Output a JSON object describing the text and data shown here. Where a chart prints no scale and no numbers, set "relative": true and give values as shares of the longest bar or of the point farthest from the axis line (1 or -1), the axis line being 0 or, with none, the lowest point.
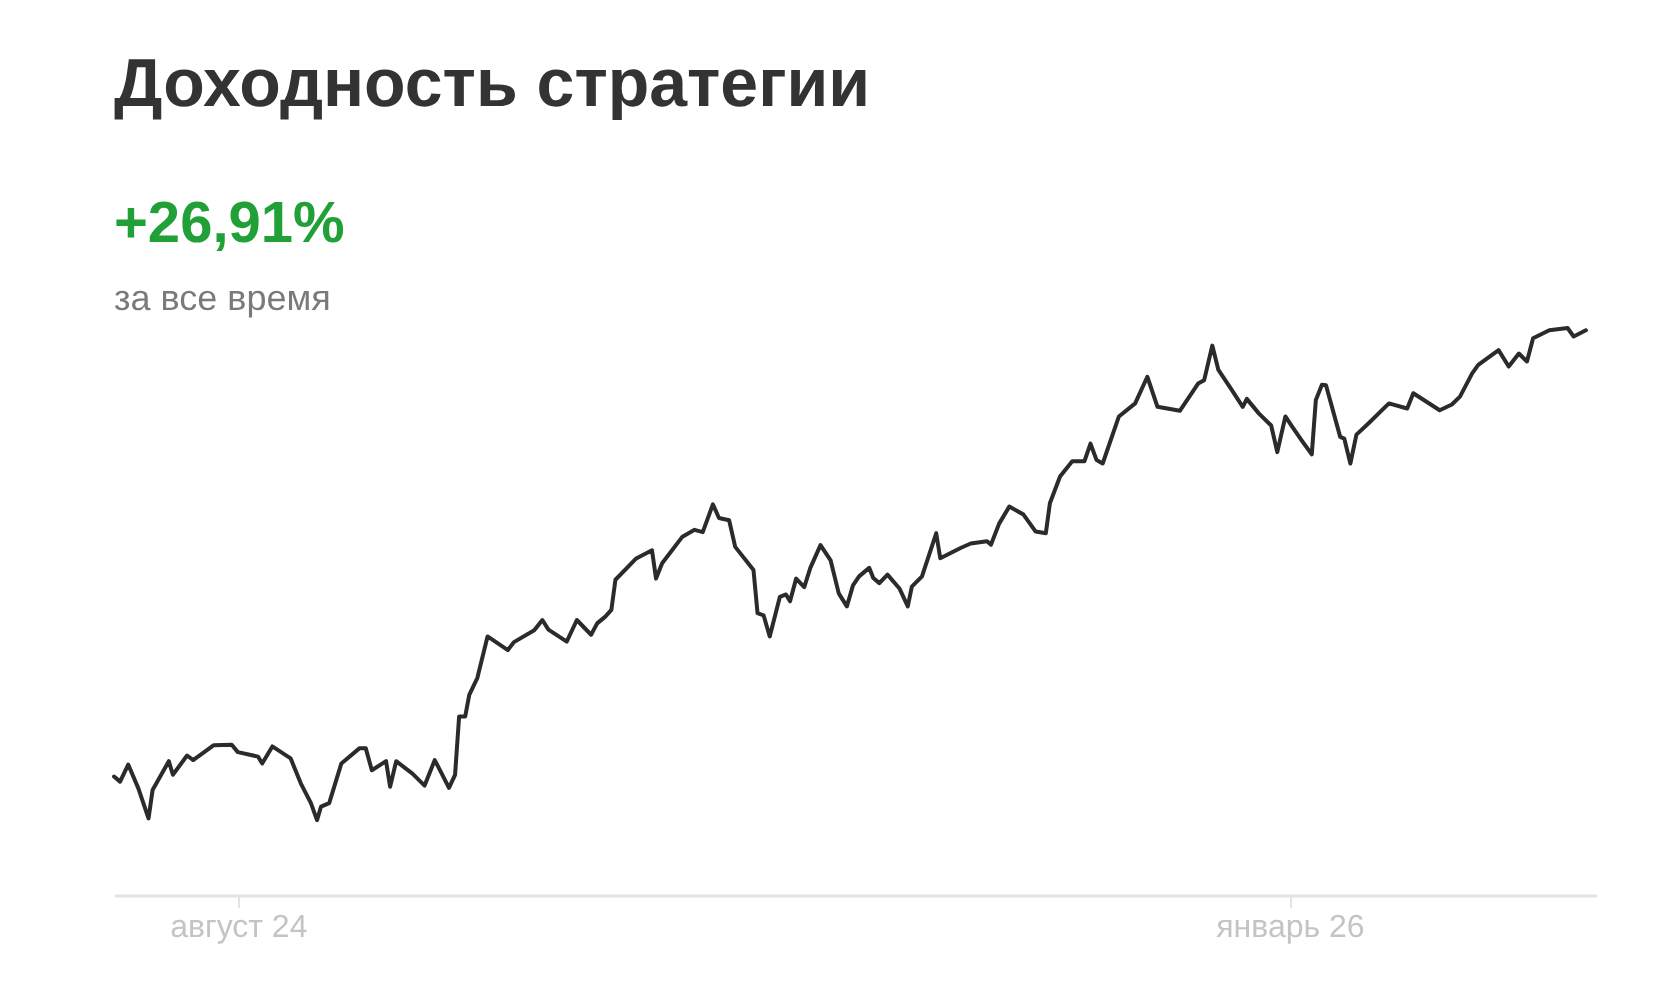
{
  "chart_data": {
    "type": "line",
    "title": "Доходность стратегии",
    "subtitle": "+26,91%",
    "annotations": [
      "за все время"
    ],
    "relative": true,
    "color": "#2b2b2b",
    "xlim": [
      "2024-06-01",
      "2026-06-01"
    ],
    "xticks": [
      {
        "value": "2024-08-01",
        "label": "август 24"
      },
      {
        "value": "2026-01-01",
        "label": "январь 26"
      }
    ],
    "x": [
      "2024-06-01",
      "2024-06-04",
      "2024-06-08",
      "2024-06-13",
      "2024-06-18",
      "2024-06-20",
      "2024-06-28",
      "2024-06-30",
      "2024-07-07",
      "2024-07-10",
      "2024-07-20",
      "2024-07-29",
      "2024-08-01",
      "2024-08-11",
      "2024-08-13",
      "2024-08-18",
      "2024-08-27",
      "2024-09-01",
      "2024-09-06",
      "2024-09-09",
      "2024-09-11",
      "2024-09-15",
      "2024-09-21",
      "2024-09-30",
      "2024-10-03",
      "2024-10-06",
      "2024-10-13",
      "2024-10-15",
      "2024-10-18",
      "2024-10-26",
      "2024-11-01",
      "2024-11-06",
      "2024-11-09",
      "2024-11-13",
      "2024-11-16",
      "2024-11-18",
      "2024-11-21",
      "2024-11-23",
      "2024-11-27",
      "2024-12-02",
      "2024-12-12",
      "2024-12-15",
      "2024-12-25",
      "2024-12-29",
      "2025-01-01",
      "2025-01-10",
      "2025-01-15",
      "2025-01-22",
      "2025-01-25",
      "2025-01-29",
      "2025-02-01",
      "2025-02-03",
      "2025-02-13",
      "2025-02-21",
      "2025-02-23",
      "2025-02-26",
      "2025-03-08",
      "2025-03-14",
      "2025-03-18",
      "2025-03-23",
      "2025-03-26",
      "2025-03-31",
      "2025-04-03",
      "2025-04-12",
      "2025-04-14",
      "2025-04-17",
      "2025-04-20",
      "2025-04-25",
      "2025-04-28",
      "2025-04-30",
      "2025-05-03",
      "2025-05-07",
      "2025-05-10",
      "2025-05-15",
      "2025-05-20",
      "2025-05-24",
      "2025-05-28",
      "2025-05-31",
      "2025-06-03",
      "2025-06-08",
      "2025-06-10",
      "2025-06-13",
      "2025-06-17",
      "2025-06-23",
      "2025-06-27",
      "2025-06-29",
      "2025-07-04",
      "2025-07-11",
      "2025-07-13",
      "2025-07-23",
      "2025-07-28",
      "2025-08-05",
      "2025-08-07",
      "2025-08-11",
      "2025-08-16",
      "2025-08-23",
      "2025-08-29",
      "2025-09-03",
      "2025-09-05",
      "2025-09-10",
      "2025-09-16",
      "2025-09-22",
      "2025-09-25",
      "2025-09-28",
      "2025-10-01",
      "2025-10-09",
      "2025-10-17",
      "2025-10-23",
      "2025-10-28",
      "2025-11-08",
      "2025-11-17",
      "2025-11-20",
      "2025-11-24",
      "2025-11-27",
      "2025-12-03",
      "2025-12-09",
      "2025-12-11",
      "2025-12-17",
      "2025-12-23",
      "2025-12-26",
      "2025-12-30",
      "2026-01-02",
      "2026-01-07",
      "2026-01-12",
      "2026-01-14",
      "2026-01-17",
      "2026-01-19",
      "2026-01-26",
      "2026-01-28",
      "2026-01-31",
      "2026-02-03",
      "2026-02-09",
      "2026-02-19",
      "2026-02-28",
      "2026-03-03",
      "2026-03-16",
      "2026-03-22",
      "2026-03-26",
      "2026-04-01",
      "2026-04-04",
      "2026-04-14",
      "2026-04-19",
      "2026-04-24",
      "2026-04-28",
      "2026-05-01",
      "2026-05-09",
      "2026-05-18",
      "2026-05-21",
      "2026-05-27"
    ],
    "values": [
      0.209,
      0.2,
      0.23,
      0.188,
      0.135,
      0.185,
      0.236,
      0.212,
      0.246,
      0.238,
      0.264,
      0.265,
      0.252,
      0.244,
      0.232,
      0.262,
      0.241,
      0.197,
      0.162,
      0.132,
      0.156,
      0.162,
      0.232,
      0.259,
      0.259,
      0.22,
      0.236,
      0.191,
      0.236,
      0.214,
      0.193,
      0.238,
      0.217,
      0.189,
      0.212,
      0.315,
      0.315,
      0.353,
      0.383,
      0.456,
      0.432,
      0.446,
      0.467,
      0.485,
      0.468,
      0.447,
      0.485,
      0.459,
      0.479,
      0.491,
      0.503,
      0.556,
      0.593,
      0.608,
      0.558,
      0.585,
      0.632,
      0.644,
      0.64,
      0.689,
      0.665,
      0.661,
      0.614,
      0.573,
      0.497,
      0.493,
      0.456,
      0.526,
      0.53,
      0.518,
      0.558,
      0.543,
      0.577,
      0.617,
      0.59,
      0.532,
      0.509,
      0.546,
      0.562,
      0.577,
      0.559,
      0.55,
      0.565,
      0.54,
      0.509,
      0.544,
      0.562,
      0.638,
      0.594,
      0.612,
      0.62,
      0.624,
      0.618,
      0.655,
      0.685,
      0.671,
      0.641,
      0.638,
      0.691,
      0.738,
      0.765,
      0.765,
      0.796,
      0.767,
      0.761,
      0.844,
      0.867,
      0.914,
      0.861,
      0.854,
      0.902,
      0.908,
      0.969,
      0.926,
      0.894,
      0.861,
      0.875,
      0.849,
      0.828,
      0.781,
      0.844,
      0.828,
      0.802,
      0.777,
      0.873,
      0.9,
      0.899,
      0.808,
      0.805,
      0.761,
      0.812,
      0.832,
      0.867,
      0.858,
      0.885,
      0.855,
      0.865,
      0.879,
      0.92,
      0.935,
      0.961,
      0.932,
      0.955,
      0.941,
      0.982,
      0.996,
      1.0,
      0.985,
      0.996
    ]
  }
}
